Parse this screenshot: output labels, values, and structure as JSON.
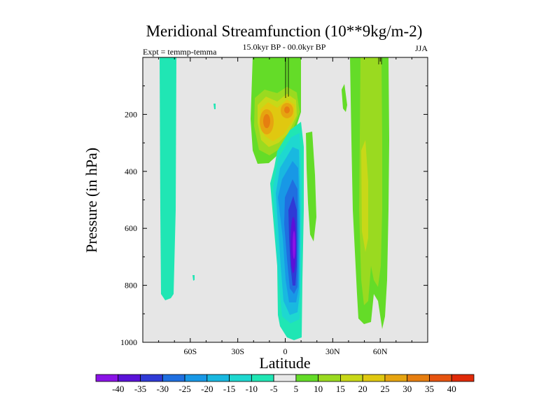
{
  "chart_data": {
    "type": "contour",
    "title": "Meridional Streamfunction (10**9kg/m-2)",
    "subtitle": "15.0kyr BP - 00.0kyr BP",
    "left_label": "Expt = temmp-temma",
    "right_label": "JJA",
    "xlabel": "Latitude",
    "ylabel": "Pressure (in hPa)",
    "x_range": [
      -90,
      90
    ],
    "y_range": [
      0,
      1000
    ],
    "x_ticks": [
      {
        "value": -60,
        "label": "60S"
      },
      {
        "value": -30,
        "label": "30S"
      },
      {
        "value": 0,
        "label": "0"
      },
      {
        "value": 30,
        "label": "30N"
      },
      {
        "value": 60,
        "label": "60N"
      }
    ],
    "y_ticks": [
      {
        "value": 200,
        "label": "200"
      },
      {
        "value": 400,
        "label": "400"
      },
      {
        "value": 600,
        "label": "600"
      },
      {
        "value": 800,
        "label": "800"
      },
      {
        "value": 1000,
        "label": "1000"
      }
    ],
    "colorbar": {
      "levels": [
        "-40",
        "-35",
        "-30",
        "-25",
        "-20",
        "-15",
        "-10",
        "-5",
        "5",
        "10",
        "15",
        "20",
        "25",
        "30",
        "35",
        "40"
      ],
      "colors": [
        "#8a13e6",
        "#5a12d8",
        "#2f3ad6",
        "#1f6fe0",
        "#1898e6",
        "#19b8e0",
        "#1ed8d0",
        "#20e6b4",
        "#e8e8e8",
        "#64dc28",
        "#9ada20",
        "#c8d818",
        "#e0c810",
        "#e6a410",
        "#e67e10",
        "#e65410",
        "#e02a08"
      ]
    },
    "features": [
      {
        "name": "southern-weak-cell",
        "approx_value": -5,
        "lat_range": [
          -78,
          -72
        ],
        "p_range": [
          0,
          850
        ]
      },
      {
        "name": "upper-tropical-positive-cell",
        "approx_value": 30,
        "lat_range": [
          -20,
          10
        ],
        "p_range": [
          0,
          320
        ]
      },
      {
        "name": "tropical-negative-cell",
        "approx_value": -40,
        "lat_range": [
          -10,
          12
        ],
        "p_range": [
          240,
          980
        ]
      },
      {
        "name": "tropical-positive-strip",
        "approx_value": 5,
        "lat_range": [
          14,
          20
        ],
        "p_range": [
          240,
          630
        ]
      },
      {
        "name": "northern-positive-cell",
        "approx_value": 15,
        "lat_range": [
          44,
          62
        ],
        "p_range": [
          0,
          950
        ]
      }
    ]
  }
}
